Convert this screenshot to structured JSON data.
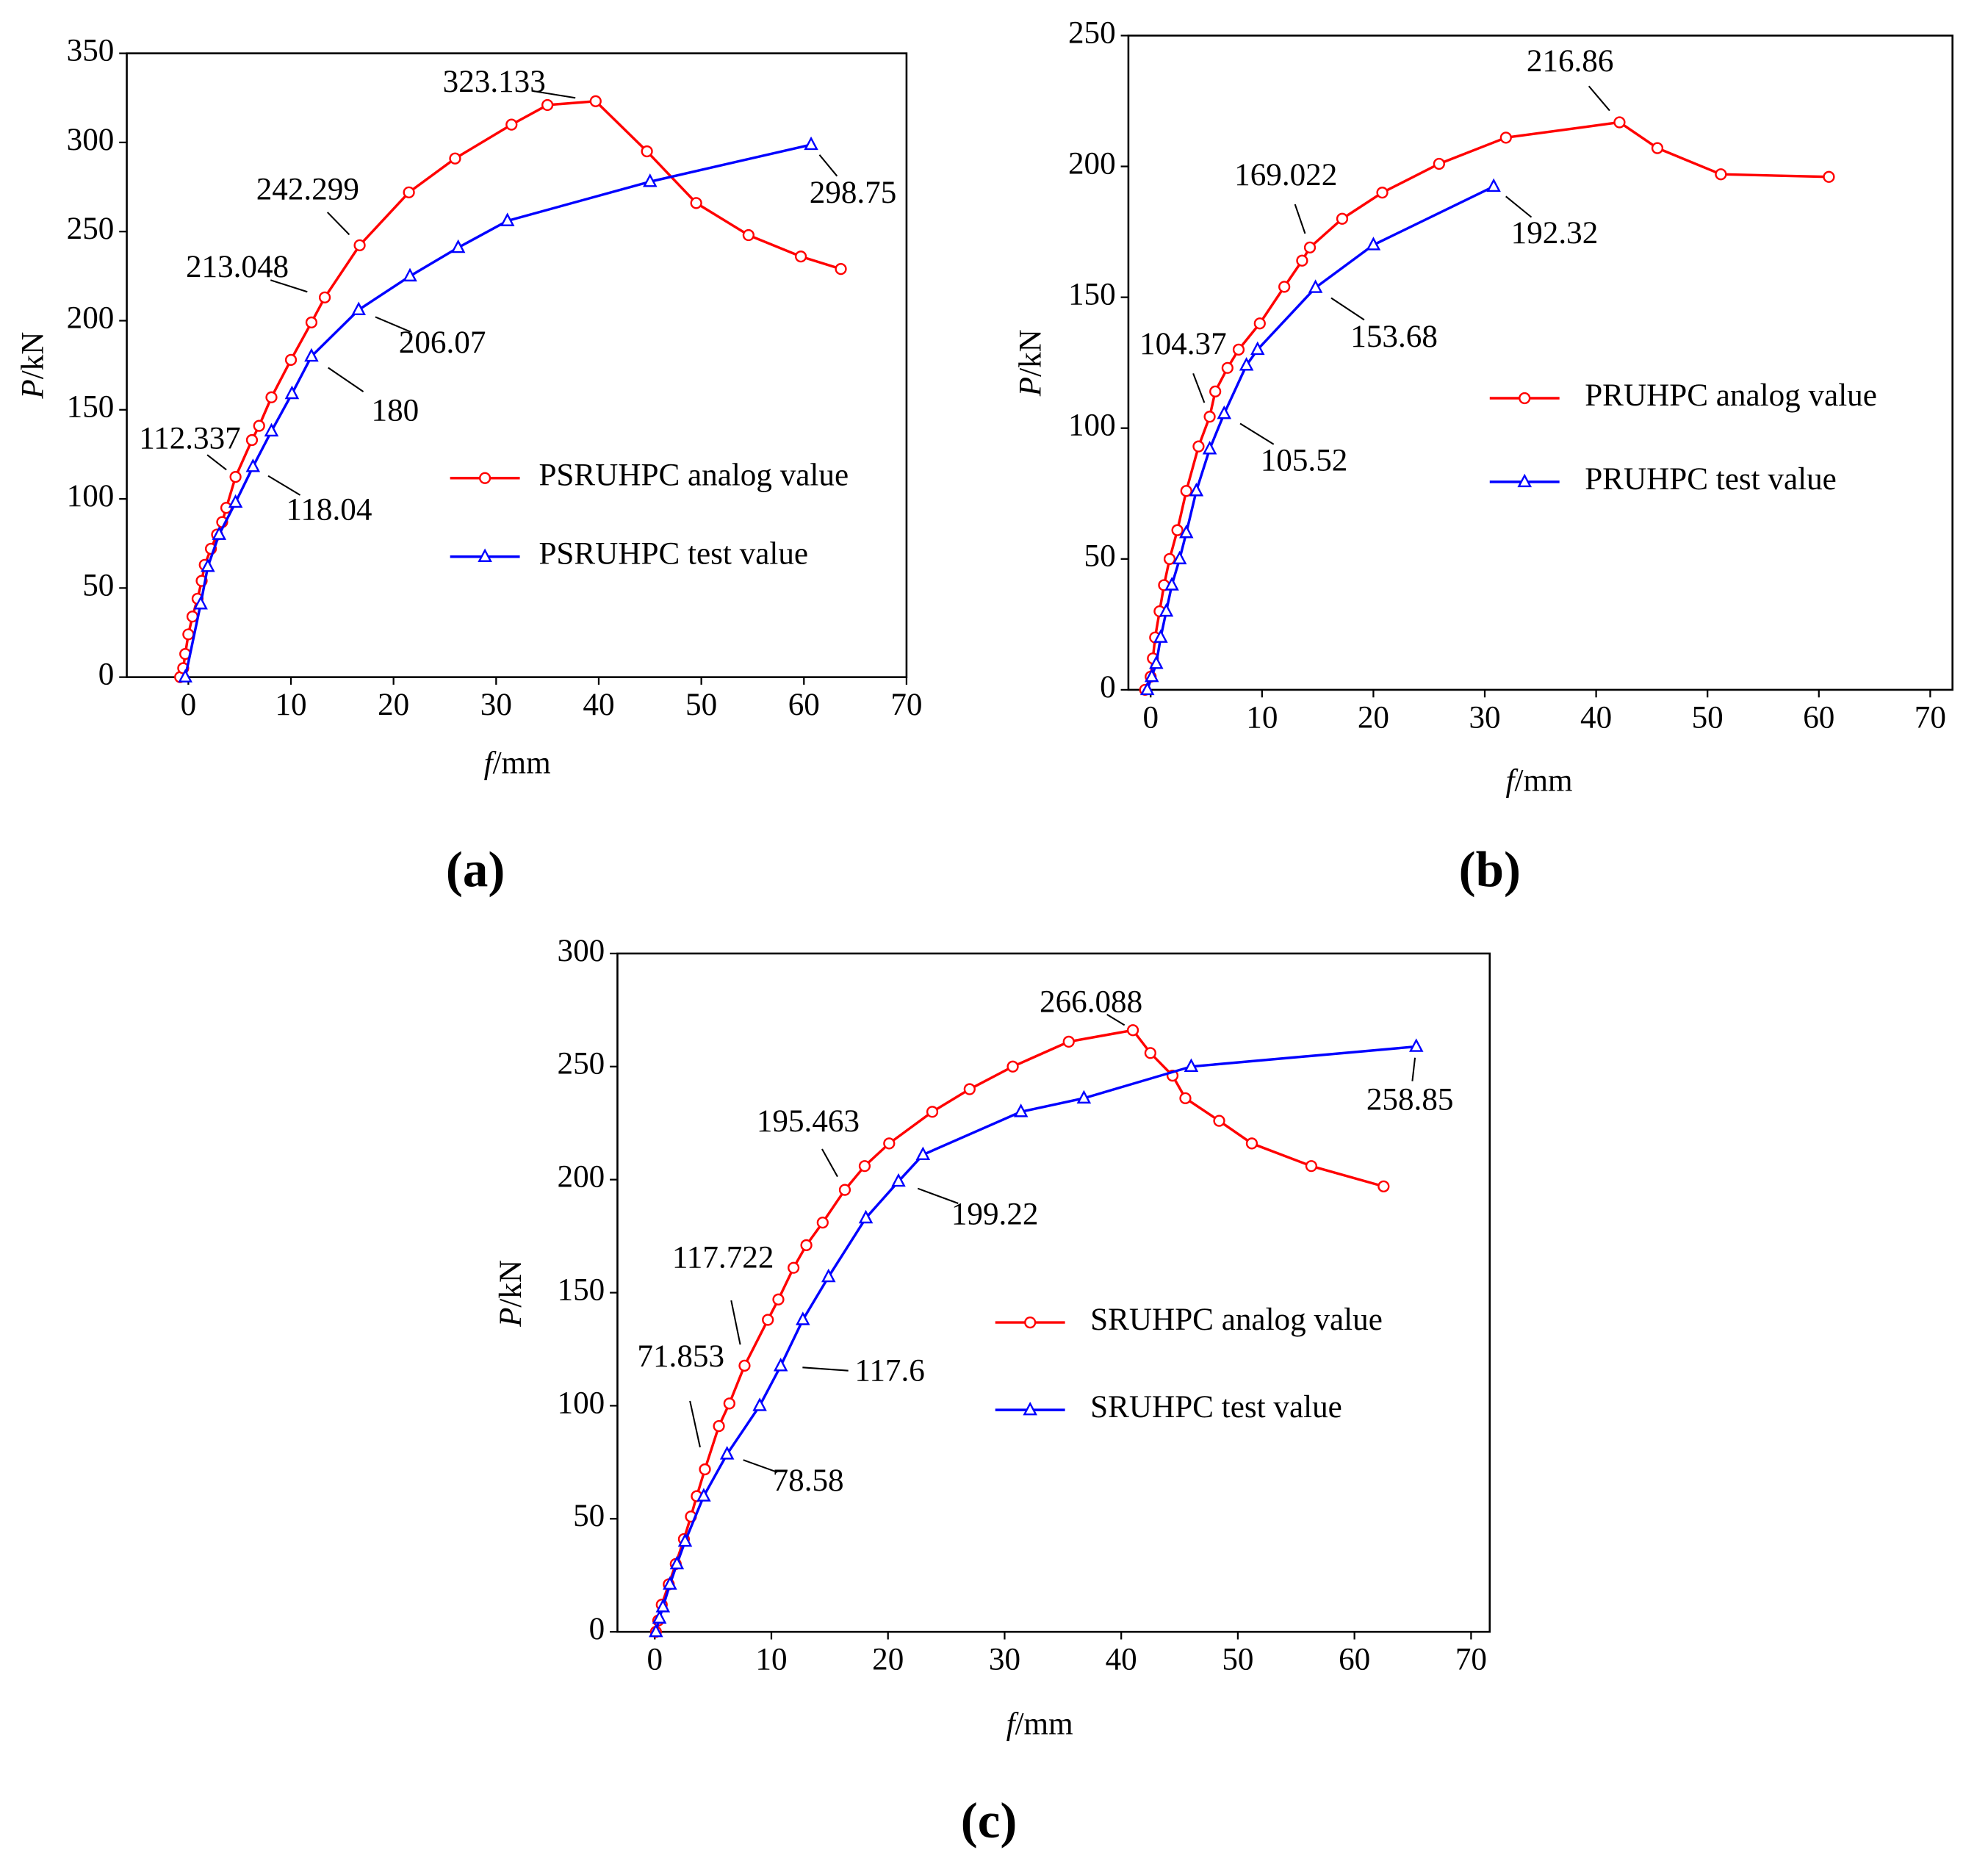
{
  "chart_data": [
    {
      "type": "line",
      "panel_label": "(a)",
      "x_label": "f/mm",
      "y_label": "P/kN",
      "xlim": [
        -6,
        70
      ],
      "ylim": [
        0,
        350
      ],
      "xticks": [
        0,
        10,
        20,
        30,
        40,
        50,
        60,
        70
      ],
      "yticks": [
        0,
        50,
        100,
        150,
        200,
        250,
        300,
        350
      ],
      "legend": "right",
      "series": [
        {
          "name": "PSRUHPC analog value",
          "color": "#ff0000",
          "marker": "circle",
          "x": [
            -0.8,
            -0.5,
            -0.3,
            0,
            0.4,
            0.9,
            1.3,
            1.6,
            2.2,
            2.8,
            3.3,
            3.7,
            4.6,
            6.2,
            6.9,
            8.1,
            10,
            12,
            13.3,
            16.7,
            21.5,
            26,
            31.5,
            35,
            39.7,
            44.7,
            49.5,
            54.6,
            59.7,
            63.6
          ],
          "values": [
            0,
            5,
            13,
            24,
            34,
            44,
            54,
            63,
            72,
            80,
            87,
            95,
            112.337,
            133,
            141,
            157,
            178,
            199,
            213.048,
            242.299,
            272,
            291,
            310,
            321,
            323.133,
            295,
            266,
            248,
            236,
            229
          ],
          "value_labels": [
            null,
            null,
            null,
            null,
            null,
            null,
            null,
            null,
            null,
            null,
            null,
            null,
            "112.337",
            null,
            null,
            null,
            null,
            null,
            "213.048",
            "242.299",
            null,
            null,
            null,
            null,
            "323.133",
            null,
            null,
            null,
            null,
            null
          ]
        },
        {
          "name": "PSRUHPC test value",
          "color": "#0000ff",
          "marker": "triangle",
          "x": [
            -0.3,
            1.2,
            1.9,
            3,
            4.6,
            6.3,
            8.1,
            10.1,
            12,
            16.6,
            21.6,
            26.3,
            31.1,
            45,
            60.7
          ],
          "values": [
            0,
            41,
            62,
            80,
            98,
            118.04,
            138,
            159,
            180,
            206.07,
            225,
            241,
            256,
            278,
            298.75
          ],
          "value_labels": [
            null,
            null,
            null,
            null,
            null,
            "118.04",
            null,
            null,
            "180",
            "206.07",
            null,
            null,
            null,
            null,
            "298.75"
          ]
        }
      ]
    },
    {
      "type": "line",
      "panel_label": "(b)",
      "x_label": "f/mm",
      "y_label": "P/kN",
      "xlim": [
        -2,
        72
      ],
      "ylim": [
        0,
        250
      ],
      "xticks": [
        0,
        10,
        20,
        30,
        40,
        50,
        60,
        70
      ],
      "yticks": [
        0,
        50,
        100,
        150,
        200,
        250
      ],
      "legend": "right",
      "series": [
        {
          "name": "PRUHPC analog value",
          "color": "#ff0000",
          "marker": "circle",
          "x": [
            -0.5,
            0,
            0.2,
            0.4,
            0.8,
            1.2,
            1.7,
            2.4,
            3.2,
            4.3,
            5.3,
            5.8,
            6.9,
            7.9,
            9.8,
            12,
            13.6,
            14.3,
            17.2,
            20.8,
            25.9,
            31.9,
            42.1,
            45.5,
            51.2,
            60.9
          ],
          "values": [
            0,
            5,
            12,
            20,
            30,
            40,
            50,
            61,
            76,
            93,
            104.37,
            114,
            123,
            130,
            140,
            154,
            164,
            169.022,
            180,
            190,
            201,
            211,
            216.86,
            207,
            197,
            196
          ],
          "value_labels": [
            null,
            null,
            null,
            null,
            null,
            null,
            null,
            null,
            null,
            null,
            "104.37",
            null,
            null,
            null,
            null,
            null,
            null,
            "169.022",
            null,
            null,
            null,
            null,
            "216.86",
            null,
            null,
            null
          ]
        },
        {
          "name": "PRUHPC test value",
          "color": "#0000ff",
          "marker": "triangle",
          "x": [
            -0.3,
            0.1,
            0.5,
            0.9,
            1.4,
            1.9,
            2.6,
            3.2,
            4.1,
            5.3,
            6.6,
            8.6,
            9.6,
            14.8,
            20,
            30.8
          ],
          "values": [
            0,
            5,
            10,
            20,
            30,
            40,
            50,
            60,
            76,
            92,
            105.52,
            124,
            130,
            153.68,
            170,
            192.32
          ],
          "value_labels": [
            null,
            null,
            null,
            null,
            null,
            null,
            null,
            null,
            null,
            null,
            "105.52",
            null,
            null,
            "153.68",
            null,
            "192.32"
          ]
        }
      ]
    },
    {
      "type": "line",
      "panel_label": "(c)",
      "x_label": "f/mm",
      "y_label": "P/kN",
      "xlim": [
        -3.2,
        71.6
      ],
      "ylim": [
        0,
        300
      ],
      "xticks": [
        0,
        10,
        20,
        30,
        40,
        50,
        60,
        70
      ],
      "yticks": [
        0,
        50,
        100,
        150,
        200,
        250,
        300
      ],
      "legend": "right",
      "series": [
        {
          "name": "SRUHPC analog value",
          "color": "#ff0000",
          "marker": "circle",
          "x": [
            0.1,
            0.3,
            0.6,
            1.2,
            1.8,
            2.5,
            3.1,
            3.6,
            4.3,
            5.5,
            6.4,
            7.7,
            9.7,
            10.6,
            11.9,
            13,
            14.4,
            16.3,
            18,
            20.1,
            23.8,
            27,
            30.7,
            35.5,
            41,
            42.5,
            44.4,
            45.5,
            48.4,
            51.2,
            56.3,
            62.5
          ],
          "values": [
            0,
            5,
            12,
            21,
            30,
            41,
            51,
            60,
            71.853,
            91,
            101,
            117.722,
            138,
            147,
            161,
            171,
            181,
            195.463,
            206,
            216,
            230,
            240,
            250,
            261,
            266.088,
            256,
            246,
            236,
            226,
            216,
            206,
            197
          ],
          "value_labels": [
            null,
            null,
            null,
            null,
            null,
            null,
            null,
            null,
            "71.853",
            null,
            null,
            "117.722",
            null,
            null,
            null,
            null,
            null,
            "195.463",
            null,
            null,
            null,
            null,
            null,
            null,
            "266.088",
            null,
            null,
            null,
            null,
            null,
            null,
            null
          ]
        },
        {
          "name": "SRUHPC test value",
          "color": "#0000ff",
          "marker": "triangle",
          "x": [
            0.1,
            0.4,
            0.7,
            1.3,
            1.9,
            2.6,
            4.2,
            6.2,
            9,
            10.8,
            12.7,
            14.9,
            18.1,
            20.9,
            23,
            31.4,
            36.8,
            46,
            65.3
          ],
          "values": [
            0,
            6,
            11,
            21,
            30,
            40,
            60,
            78.58,
            100,
            117.6,
            138,
            157,
            183,
            199.22,
            211,
            230,
            236,
            250,
            258.85
          ],
          "value_labels": [
            null,
            null,
            null,
            null,
            null,
            null,
            null,
            "78.58",
            null,
            "117.6",
            null,
            null,
            null,
            "199.22",
            null,
            null,
            null,
            null,
            "258.85"
          ]
        }
      ]
    }
  ]
}
